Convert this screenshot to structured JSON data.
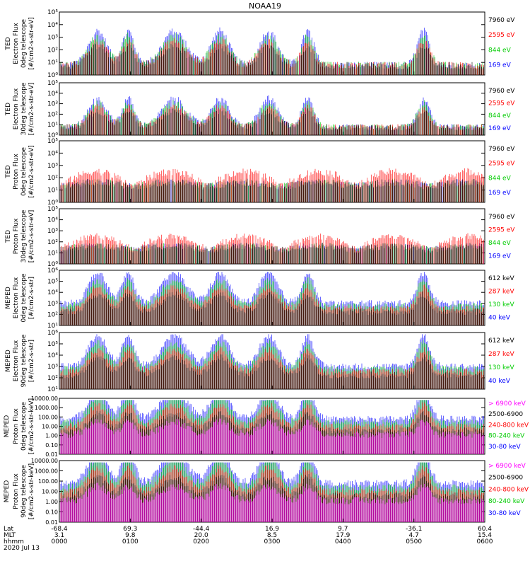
{
  "chart_data": {
    "title": "NOAA19",
    "type": "line",
    "panels": [
      {
        "ylabel": [
          "TED",
          "Electron Flux",
          "0deg telescope",
          "[#/cm2-s-str-eV]"
        ],
        "yticks": [
          "10⁰",
          "10¹",
          "10²",
          "10³",
          "10⁴",
          "10⁵"
        ],
        "ylim": [
          1,
          100000
        ],
        "log": true,
        "legend": [
          {
            "name": "7960 eV",
            "color": "#000000"
          },
          {
            "name": "2595 eV",
            "color": "#ff0000"
          },
          {
            "name": "844 eV",
            "color": "#00cc00"
          },
          {
            "name": "169 eV",
            "color": "#0000ff"
          }
        ]
      },
      {
        "ylabel": [
          "TED",
          "Electron Flux",
          "30deg telescope",
          "[#/cm2-s-str-eV]"
        ],
        "yticks": [
          "10⁰",
          "10¹",
          "10²",
          "10³",
          "10⁴",
          "10⁵"
        ],
        "ylim": [
          1,
          100000
        ],
        "log": true,
        "legend": [
          {
            "name": "7960 eV",
            "color": "#000000"
          },
          {
            "name": "2595 eV",
            "color": "#ff0000"
          },
          {
            "name": "844 eV",
            "color": "#00cc00"
          },
          {
            "name": "169 eV",
            "color": "#0000ff"
          }
        ]
      },
      {
        "ylabel": [
          "TED",
          "Proton Flux",
          "0deg telescope",
          "[#/cm2-s-str-eV]"
        ],
        "yticks": [
          "10⁰",
          "10¹",
          "10²",
          "10³",
          "10⁴",
          "10⁵"
        ],
        "ylim": [
          1,
          100000
        ],
        "log": true,
        "legend": [
          {
            "name": "7960 eV",
            "color": "#000000"
          },
          {
            "name": "2595 eV",
            "color": "#ff0000"
          },
          {
            "name": "844 eV",
            "color": "#00cc00"
          },
          {
            "name": "169 eV",
            "color": "#0000ff"
          }
        ]
      },
      {
        "ylabel": [
          "TED",
          "Proton Flux",
          "30deg telescope",
          "[#/cm2-s-str-eV]"
        ],
        "yticks": [
          "10⁰",
          "10¹",
          "10²",
          "10³",
          "10⁴",
          "10⁵"
        ],
        "ylim": [
          1,
          100000
        ],
        "log": true,
        "legend": [
          {
            "name": "7960 eV",
            "color": "#000000"
          },
          {
            "name": "2595 eV",
            "color": "#ff0000"
          },
          {
            "name": "844 eV",
            "color": "#00cc00"
          },
          {
            "name": "169 eV",
            "color": "#0000ff"
          }
        ]
      },
      {
        "ylabel": [
          "MEPED",
          "Electron Flux",
          "0deg telescope",
          "[#/cm2-s-str]"
        ],
        "yticks": [
          "10¹",
          "10²",
          "10³",
          "10⁴",
          "10⁵",
          "10⁶"
        ],
        "ylim": [
          10,
          1000000
        ],
        "log": true,
        "legend": [
          {
            "name": "612 keV",
            "color": "#000000"
          },
          {
            "name": "287 keV",
            "color": "#ff0000"
          },
          {
            "name": "130 keV",
            "color": "#00cc00"
          },
          {
            "name": "40 keV",
            "color": "#0000ff"
          }
        ]
      },
      {
        "ylabel": [
          "MEPED",
          "Electron Flux",
          "90deg telescope",
          "[#/cm2-s-str]"
        ],
        "yticks": [
          "10¹",
          "10²",
          "10³",
          "10⁴",
          "10⁵",
          "10⁶"
        ],
        "ylim": [
          10,
          1000000
        ],
        "log": true,
        "legend": [
          {
            "name": "612 keV",
            "color": "#000000"
          },
          {
            "name": "287 keV",
            "color": "#ff0000"
          },
          {
            "name": "130 keV",
            "color": "#00cc00"
          },
          {
            "name": "40 keV",
            "color": "#0000ff"
          }
        ]
      },
      {
        "ylabel": [
          "MEPED",
          "Proton Flux",
          "0deg telescope",
          "[#/cm2-s-str-keV]"
        ],
        "yticks": [
          "0.01",
          "0.10",
          "1.00",
          "10.00",
          "100.00",
          "1000.00",
          "10000.00"
        ],
        "ylim": [
          0.01,
          10000
        ],
        "log": true,
        "legend": [
          {
            "name": "> 6900 keV",
            "color": "#ff00ff"
          },
          {
            "name": "2500-6900",
            "color": "#000000"
          },
          {
            "name": "240-800 keV",
            "color": "#ff0000"
          },
          {
            "name": "80-240 keV",
            "color": "#00cc00"
          },
          {
            "name": "30-80 keV",
            "color": "#0000ff"
          }
        ]
      },
      {
        "ylabel": [
          "MEPED",
          "Proton Flux",
          "90deg telescope",
          "[#/cm2-s-str-keV]"
        ],
        "yticks": [
          "0.01",
          "0.10",
          "1.00",
          "10.00",
          "100.00",
          "1000.00",
          "10000.00"
        ],
        "ylim": [
          0.01,
          10000
        ],
        "log": true,
        "legend": [
          {
            "name": "> 6900 keV",
            "color": "#ff00ff"
          },
          {
            "name": "2500-6900",
            "color": "#000000"
          },
          {
            "name": "240-800 keV",
            "color": "#ff0000"
          },
          {
            "name": "80-240 keV",
            "color": "#00cc00"
          },
          {
            "name": "30-80 keV",
            "color": "#0000ff"
          }
        ]
      }
    ],
    "x_axis": {
      "row_labels": [
        "Lat",
        "MLT",
        "hhmm",
        "2020 Jul 13"
      ],
      "ticks": [
        {
          "lat": "-68.4",
          "mlt": "3.1",
          "hhmm": "0000"
        },
        {
          "lat": "69.3",
          "mlt": "9.8",
          "hhmm": "0100"
        },
        {
          "lat": "-44.4",
          "mlt": "20.0",
          "hhmm": "0200"
        },
        {
          "lat": "16.9",
          "mlt": "8.5",
          "hhmm": "0300"
        },
        {
          "lat": "9.7",
          "mlt": "17.9",
          "hhmm": "0400"
        },
        {
          "lat": "-36.1",
          "mlt": "4.7",
          "hhmm": "0500"
        },
        {
          "lat": "60.4",
          "mlt": "15.4",
          "hhmm": "0600"
        }
      ]
    }
  }
}
